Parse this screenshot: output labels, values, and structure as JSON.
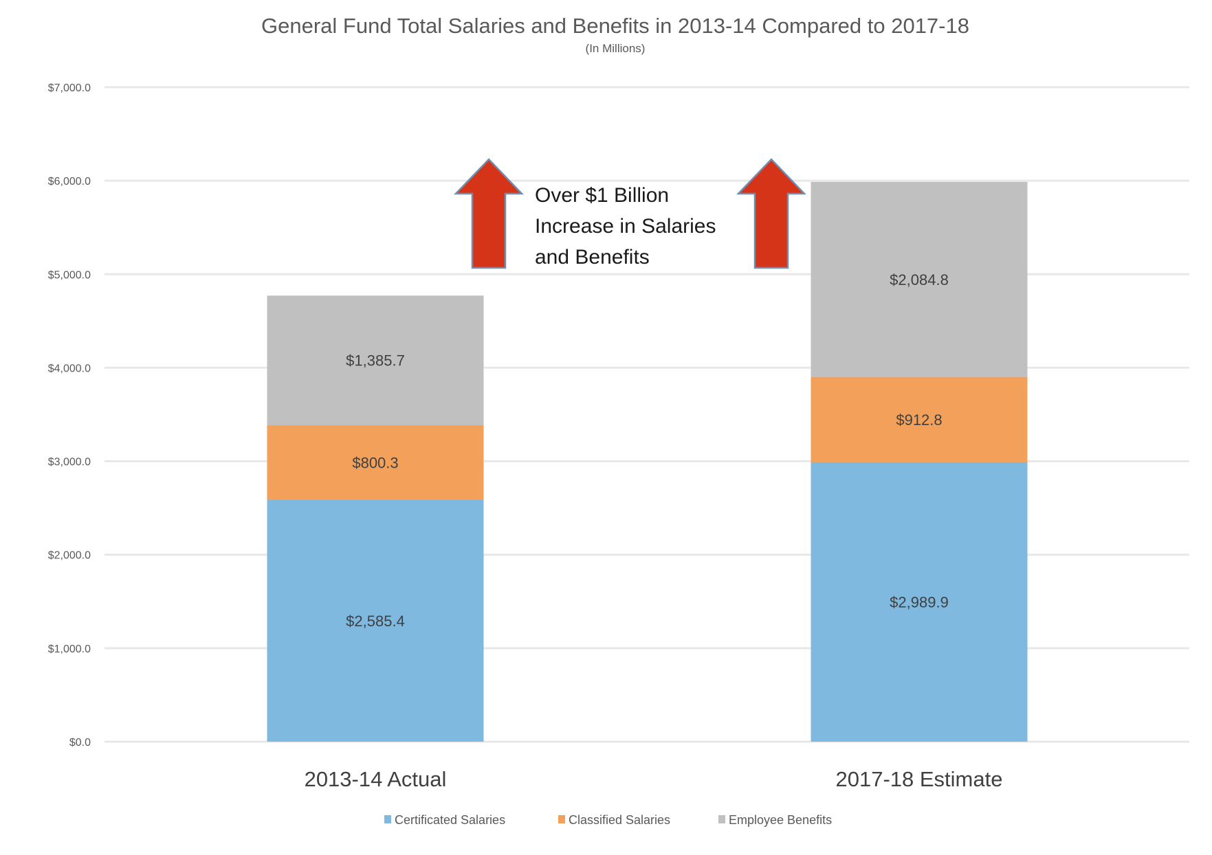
{
  "chart_data": {
    "type": "bar",
    "stacked": true,
    "title": "General Fund Total Salaries and Benefits in 2013-14 Compared to 2017-18",
    "subtitle": "(In Millions)",
    "xlabel": "",
    "ylabel": "",
    "ylim": [
      0,
      7000
    ],
    "yticks": [
      0,
      1000,
      2000,
      3000,
      4000,
      5000,
      6000,
      7000
    ],
    "ytick_labels": [
      "$0.0",
      "$1,000.0",
      "$2,000.0",
      "$3,000.0",
      "$4,000.0",
      "$5,000.0",
      "$6,000.0",
      "$7,000.0"
    ],
    "grid": true,
    "categories": [
      "2013-14 Actual",
      "2017-18 Estimate"
    ],
    "series": [
      {
        "name": "Certificated Salaries",
        "color": "#7fb9e0",
        "values": [
          2585.4,
          2989.9
        ],
        "labels": [
          "$2,585.4",
          "$2,989.9"
        ]
      },
      {
        "name": "Classified Salaries",
        "color": "#f3a15a",
        "values": [
          800.3,
          912.8
        ],
        "labels": [
          "$800.3",
          "$912.8"
        ]
      },
      {
        "name": "Employee Benefits",
        "color": "#c0c0c0",
        "values": [
          1385.7,
          2084.8
        ],
        "labels": [
          "$1,385.7",
          "$2,084.8"
        ]
      }
    ],
    "legend_position": "bottom",
    "annotation": {
      "lines": [
        "Over $1 Billion",
        "Increase in Salaries",
        "and Benefits"
      ],
      "arrow_color": "#d63418",
      "arrow_count": 2
    }
  }
}
